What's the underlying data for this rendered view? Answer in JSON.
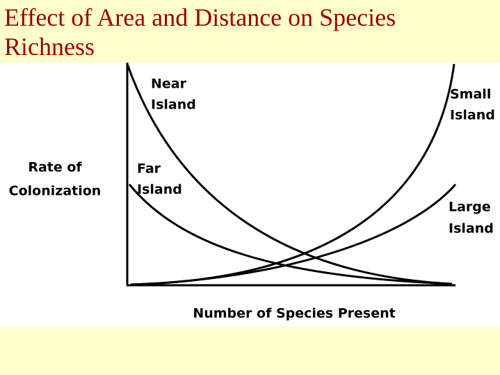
{
  "title": "Effect of Area and Distance on Species Richness",
  "y_axis_label": [
    "Rate of",
    "Colonization"
  ],
  "x_axis_label": "Number of Species Present",
  "curves": [
    {
      "label": [
        "Near",
        "Island"
      ]
    },
    {
      "label": [
        "Far",
        "Island"
      ]
    },
    {
      "label": [
        "Small",
        "Island"
      ]
    },
    {
      "label": [
        "Large",
        "Island"
      ]
    }
  ]
}
